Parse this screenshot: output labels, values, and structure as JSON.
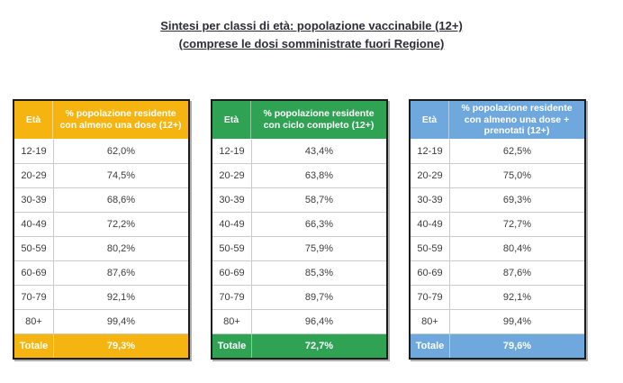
{
  "title": {
    "line1": "Sintesi per classi di età: popolazione vaccinabile (12+)",
    "line2": "(comprese le dosi somministrate fuori Regione)"
  },
  "age_classes": [
    "12-19",
    "20-29",
    "30-39",
    "40-49",
    "50-59",
    "60-69",
    "70-79",
    "80+"
  ],
  "tables": [
    {
      "eta_header": "Età",
      "value_header": "% popolazione residente con almeno una dose (12+)",
      "accent_color": "#F5B40F",
      "values": [
        "62,0%",
        "74,5%",
        "68,6%",
        "72,2%",
        "80,2%",
        "87,6%",
        "92,1%",
        "99,4%"
      ],
      "total_label": "Totale",
      "total_value": "79,3%"
    },
    {
      "eta_header": "Età",
      "value_header": "% popolazione residente con ciclo completo (12+)",
      "accent_color": "#2FA254",
      "values": [
        "43,4%",
        "63,8%",
        "58,7%",
        "66,3%",
        "75,9%",
        "85,3%",
        "89,7%",
        "96,4%"
      ],
      "total_label": "Totale",
      "total_value": "72,7%"
    },
    {
      "eta_header": "Età",
      "value_header": "% popolazione residente con almeno una dose + prenotati (12+)",
      "accent_color": "#6FA8DC",
      "values": [
        "62,5%",
        "75,0%",
        "69,3%",
        "72,7%",
        "80,4%",
        "87,6%",
        "92,1%",
        "99,4%"
      ],
      "total_label": "Totale",
      "total_value": "79,6%"
    }
  ],
  "chart_data": {
    "type": "table",
    "title": "Sintesi per classi di età: popolazione vaccinabile (12+) (comprese le dosi somministrate fuori Regione)",
    "categories": [
      "12-19",
      "20-29",
      "30-39",
      "40-49",
      "50-59",
      "60-69",
      "70-79",
      "80+",
      "Totale"
    ],
    "series": [
      {
        "name": "% popolazione residente con almeno una dose (12+)",
        "values": [
          62.0,
          74.5,
          68.6,
          72.2,
          80.2,
          87.6,
          92.1,
          99.4,
          79.3
        ]
      },
      {
        "name": "% popolazione residente con ciclo completo (12+)",
        "values": [
          43.4,
          63.8,
          58.7,
          66.3,
          75.9,
          85.3,
          89.7,
          96.4,
          72.7
        ]
      },
      {
        "name": "% popolazione residente con almeno una dose + prenotati (12+)",
        "values": [
          62.5,
          75.0,
          69.3,
          72.7,
          80.4,
          87.6,
          92.1,
          99.4,
          79.6
        ]
      }
    ]
  }
}
